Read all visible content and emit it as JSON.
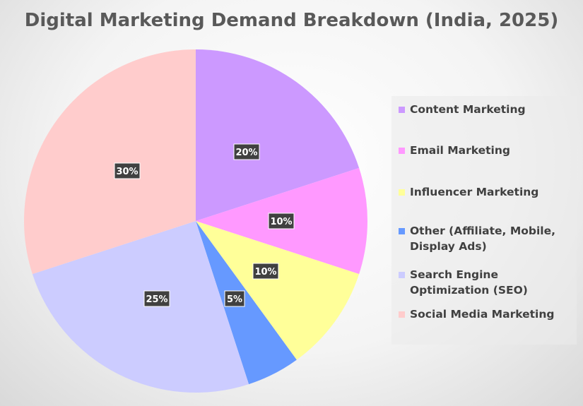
{
  "chart_data": {
    "type": "pie",
    "title": "Digital Marketing Demand Breakdown (India, 2025)",
    "slices": [
      {
        "label": "Content Marketing",
        "value": 20,
        "display": "20%",
        "color": "#cc99ff"
      },
      {
        "label": "Email Marketing",
        "value": 10,
        "display": "10%",
        "color": "#ff99ff"
      },
      {
        "label": "Influencer Marketing",
        "value": 10,
        "display": "10%",
        "color": "#ffff99"
      },
      {
        "label": "Other (Affiliate, Mobile, Display Ads)",
        "value": 5,
        "display": "5%",
        "color": "#6699ff"
      },
      {
        "label": "Search Engine Optimization (SEO)",
        "value": 25,
        "display": "25%",
        "color": "#ccccff"
      },
      {
        "label": "Social Media Marketing",
        "value": 30,
        "display": "30%",
        "color": "#ffcccc"
      }
    ],
    "legend_position": "right"
  }
}
